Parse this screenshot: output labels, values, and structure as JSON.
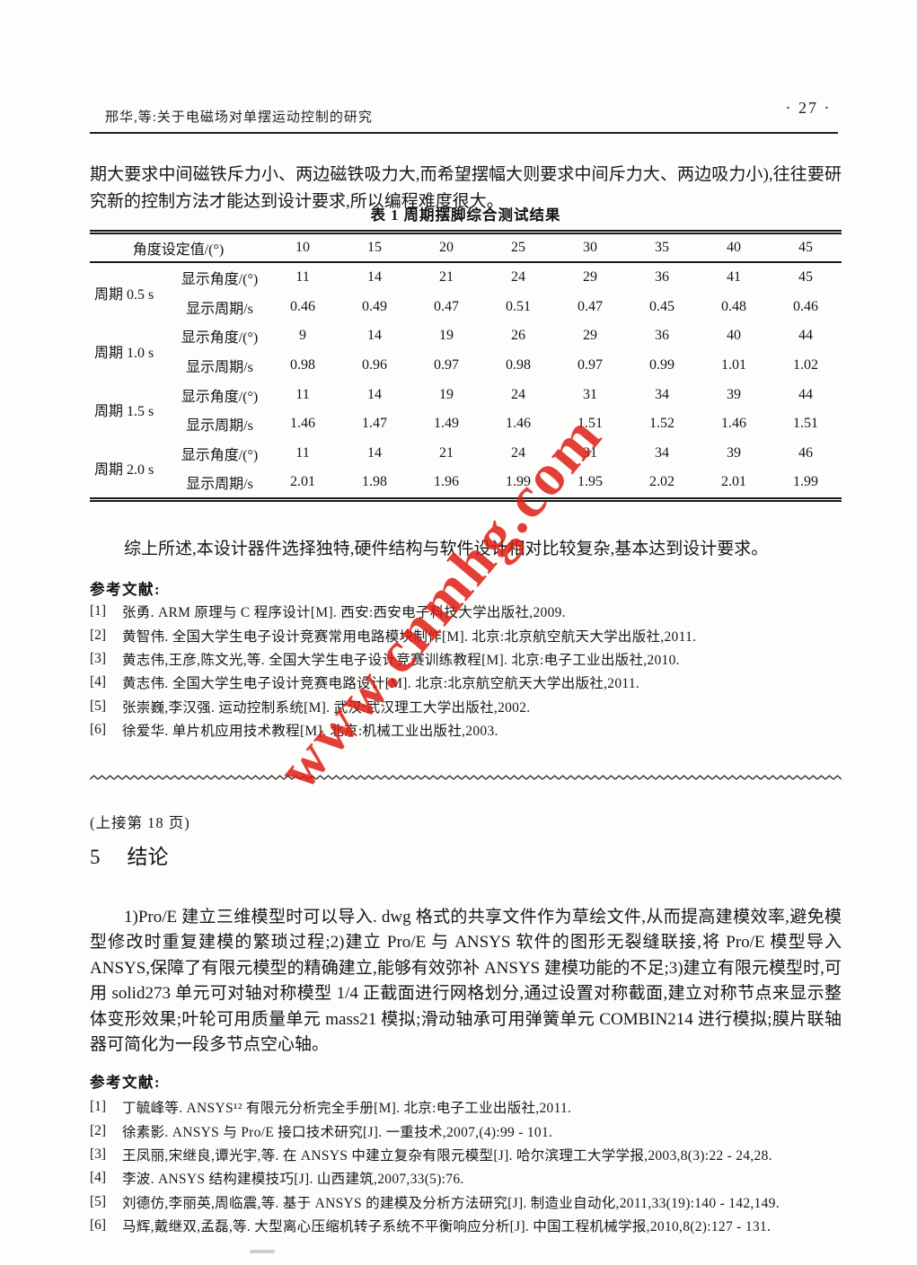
{
  "header": {
    "running_title": "邢华,等:关于电磁场对单摆运动控制的研究",
    "page_number": "· 27 ·"
  },
  "intro_paragraph": "期大要求中间磁铁斥力小、两边磁铁吸力大,而希望摆幅大则要求中间斥力大、两边吸力小),往往要研究新的控制方法才能达到设计要求,所以编程难度很大。",
  "table": {
    "title": "表 1  周期摆脚综合测试结果",
    "header_label": "角度设定值/(°)",
    "angle_settings": [
      "10",
      "15",
      "20",
      "25",
      "30",
      "35",
      "40",
      "45"
    ],
    "groups": [
      {
        "label": "周期 0.5 s",
        "rows": [
          {
            "label": "显示角度/(°)",
            "values": [
              "11",
              "14",
              "21",
              "24",
              "29",
              "36",
              "41",
              "45"
            ]
          },
          {
            "label": "显示周期/s",
            "values": [
              "0.46",
              "0.49",
              "0.47",
              "0.51",
              "0.47",
              "0.45",
              "0.48",
              "0.46"
            ]
          }
        ]
      },
      {
        "label": "周期 1.0 s",
        "rows": [
          {
            "label": "显示角度/(°)",
            "values": [
              "9",
              "14",
              "19",
              "26",
              "29",
              "36",
              "40",
              "44"
            ]
          },
          {
            "label": "显示周期/s",
            "values": [
              "0.98",
              "0.96",
              "0.97",
              "0.98",
              "0.97",
              "0.99",
              "1.01",
              "1.02"
            ]
          }
        ]
      },
      {
        "label": "周期 1.5 s",
        "rows": [
          {
            "label": "显示角度/(°)",
            "values": [
              "11",
              "14",
              "19",
              "24",
              "31",
              "34",
              "39",
              "44"
            ]
          },
          {
            "label": "显示周期/s",
            "values": [
              "1.46",
              "1.47",
              "1.49",
              "1.46",
              "1.51",
              "1.52",
              "1.46",
              "1.51"
            ]
          }
        ]
      },
      {
        "label": "周期 2.0 s",
        "rows": [
          {
            "label": "显示角度/(°)",
            "values": [
              "11",
              "14",
              "21",
              "24",
              "31",
              "34",
              "39",
              "46"
            ]
          },
          {
            "label": "显示周期/s",
            "values": [
              "2.01",
              "1.98",
              "1.96",
              "1.99",
              "1.95",
              "2.02",
              "2.01",
              "1.99"
            ]
          }
        ]
      }
    ]
  },
  "summary_paragraph": "综上所述,本设计器件选择独特,硬件结构与软件设计相对比较复杂,基本达到设计要求。",
  "references_section_1": {
    "heading": "参考文献:",
    "items": [
      {
        "num": "[1]",
        "text": "张勇. ARM 原理与 C 程序设计[M]. 西安:西安电子科技大学出版社,2009."
      },
      {
        "num": "[2]",
        "text": "黄智伟. 全国大学生电子设计竞赛常用电路模块制作[M]. 北京:北京航空航天大学出版社,2011."
      },
      {
        "num": "[3]",
        "text": "黄志伟,王彦,陈文光,等. 全国大学生电子设计竞赛训练教程[M]. 北京:电子工业出版社,2010."
      },
      {
        "num": "[4]",
        "text": "黄志伟. 全国大学生电子设计竞赛电路设计[M]. 北京:北京航空航天大学出版社,2011."
      },
      {
        "num": "[5]",
        "text": "张崇巍,李汉强. 运动控制系统[M]. 武汉:武汉理工大学出版社,2002."
      },
      {
        "num": "[6]",
        "text": "徐爱华. 单片机应用技术教程[M]. 北京:机械工业出版社,2003."
      }
    ]
  },
  "continuation_note": "(上接第 18 页)",
  "conclusion_section": {
    "number": "5",
    "title": "结论",
    "paragraph": "1)Pro/E 建立三维模型时可以导入. dwg 格式的共享文件作为草绘文件,从而提高建模效率,避免模型修改时重复建模的繁琐过程;2)建立 Pro/E 与 ANSYS 软件的图形无裂缝联接,将 Pro/E 模型导入 ANSYS,保障了有限元模型的精确建立,能够有效弥补 ANSYS 建模功能的不足;3)建立有限元模型时,可用 solid273 单元可对轴对称模型 1/4 正截面进行网格划分,通过设置对称截面,建立对称节点来显示整体变形效果;叶轮可用质量单元 mass21 模拟;滑动轴承可用弹簧单元 COMBIN214 进行模拟;膜片联轴器可简化为一段多节点空心轴。"
  },
  "references_section_2": {
    "heading": "参考文献:",
    "items": [
      {
        "num": "[1]",
        "text": "丁毓峰等. ANSYS¹² 有限元分析完全手册[M]. 北京:电子工业出版社,2011."
      },
      {
        "num": "[2]",
        "text": "徐素影. ANSYS 与 Pro/E 接口技术研究[J]. 一重技术,2007,(4):99 - 101."
      },
      {
        "num": "[3]",
        "text": "王凤丽,宋继良,谭光宇,等. 在 ANSYS 中建立复杂有限元模型[J]. 哈尔滨理工大学学报,2003,8(3):22 - 24,28."
      },
      {
        "num": "[4]",
        "text": "李波. ANSYS 结构建模技巧[J]. 山西建筑,2007,33(5):76."
      },
      {
        "num": "[5]",
        "text": "刘德仿,李丽英,周临震,等. 基于 ANSYS 的建模及分析方法研究[J]. 制造业自动化,2011,33(19):140 - 142,149."
      },
      {
        "num": "[6]",
        "text": "马辉,戴继双,孟磊,等. 大型离心压缩机转子系统不平衡响应分析[J]. 中国工程机械学报,2010,8(2):127 - 131."
      }
    ]
  },
  "watermark": {
    "text": "www.cnmhg.com",
    "color": "#e01e15"
  }
}
